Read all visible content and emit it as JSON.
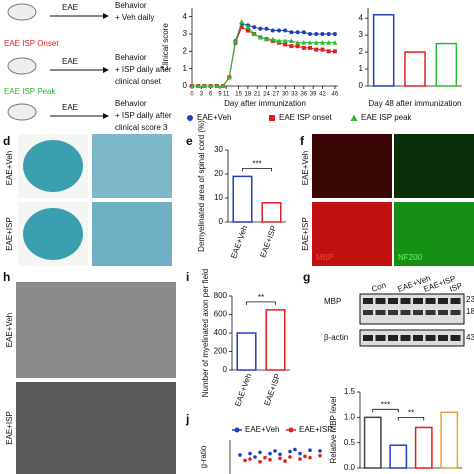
{
  "panel_labels": {
    "d": "d",
    "e": "e",
    "f": "f",
    "h": "h",
    "i": "i",
    "g": "g",
    "j": "j"
  },
  "schematic": {
    "row1": {
      "eae": "EAE",
      "line1": "Behavior",
      "line2": "+ Veh daily"
    },
    "row2": {
      "group": "EAE ISP Onset",
      "eae": "EAE",
      "line1": "Behavior",
      "line2": "+ ISP daily after",
      "line3": "clinical onset"
    },
    "row3": {
      "group": "EAE ISP Peak",
      "eae": "EAE",
      "line1": "Behavior",
      "line2": "+ ISP daily after",
      "line3": "clinical score 3"
    }
  },
  "images": {
    "d": {
      "veh": "EAE+Veh",
      "isp": "EAE+ISP"
    },
    "f": {
      "veh": "EAE+Veh",
      "isp": "EAE+ISP",
      "mbp": "MBP",
      "nf200": "NF200"
    },
    "h": {
      "veh": "EAE+Veh",
      "isp": "EAE+ISP"
    },
    "blot": {
      "lanes": [
        "Con",
        "EAE+Veh",
        "EAE+ISP",
        "ISP"
      ],
      "rows": [
        "MBP",
        "β-actin"
      ],
      "markers": [
        "23",
        "18",
        "43"
      ]
    }
  },
  "chart_data": [
    {
      "type": "line",
      "ylabel": "Clinical score",
      "xlabel": "Day after immunization",
      "x": [
        0,
        2,
        4,
        6,
        8,
        10,
        12,
        14,
        16,
        18,
        20,
        22,
        24,
        26,
        28,
        30,
        32,
        34,
        36,
        38,
        40,
        42,
        44,
        46
      ],
      "xlim": [
        0,
        47
      ],
      "ylim": [
        0,
        4.5
      ],
      "yticks": [
        0,
        1,
        2,
        3,
        4
      ],
      "xticks": [
        0,
        3,
        6,
        9,
        11,
        15,
        18,
        21,
        24,
        27,
        30,
        33,
        36,
        39,
        42,
        46
      ],
      "series": [
        {
          "name": "EAE+Veh",
          "color": "#1f3fbf",
          "marker": "circle",
          "values": [
            0,
            0,
            0,
            0,
            0,
            0,
            0.5,
            2.6,
            3.6,
            3.5,
            3.4,
            3.3,
            3.3,
            3.2,
            3.2,
            3.2,
            3.1,
            3.1,
            3.1,
            3.0,
            3.0,
            3.0,
            3.0,
            3.0
          ]
        },
        {
          "name": "EAE ISP onset",
          "color": "#e02020",
          "marker": "square",
          "values": [
            0,
            0,
            0,
            0,
            0,
            0,
            0.5,
            2.5,
            3.4,
            3.2,
            3.0,
            2.8,
            2.7,
            2.6,
            2.5,
            2.4,
            2.3,
            2.3,
            2.2,
            2.2,
            2.1,
            2.1,
            2.0,
            2.0
          ]
        },
        {
          "name": "EAE ISP peak",
          "color": "#2db82d",
          "marker": "triangle",
          "values": [
            0,
            0,
            0,
            0,
            0,
            0,
            0.5,
            2.6,
            3.7,
            3.4,
            3.0,
            2.8,
            2.7,
            2.7,
            2.6,
            2.6,
            2.6,
            2.5,
            2.5,
            2.5,
            2.5,
            2.5,
            2.5,
            2.5
          ]
        }
      ]
    },
    {
      "type": "bar",
      "xlabel": "Day 48 after immunization",
      "categories": [
        null,
        null,
        null
      ],
      "values": [
        4.2,
        2.0,
        2.5
      ],
      "colors": [
        "#1f3fbf",
        "#e02020",
        "#2db82d"
      ],
      "ylim": [
        0,
        4.6
      ],
      "yticks": [
        0,
        1,
        2,
        3,
        4
      ],
      "annotations": []
    },
    {
      "type": "bar",
      "ylabel": "Demyelinated area of spinal cord (%)",
      "categories": [
        "EAE+Veh",
        "EAE+ISP"
      ],
      "values": [
        19,
        8
      ],
      "colors": [
        "#1f3fbf",
        "#e02020"
      ],
      "ylim": [
        0,
        30
      ],
      "yticks": [
        0,
        10,
        20,
        30
      ],
      "annotations": [
        "***"
      ]
    },
    {
      "type": "bar",
      "ylabel": "Number of myelinated axon per field",
      "categories": [
        "EAE+Veh",
        "EAE+ISP"
      ],
      "values": [
        400,
        650
      ],
      "colors": [
        "#1f3fbf",
        "#e02020"
      ],
      "ylim": [
        0,
        800
      ],
      "yticks": [
        0,
        200,
        400,
        600,
        800
      ],
      "annotations": [
        "**"
      ]
    },
    {
      "type": "bar",
      "ylabel": "Relative MBP level",
      "categories": [
        null,
        null,
        null,
        null
      ],
      "values": [
        1.0,
        0.45,
        0.8,
        1.1
      ],
      "colors": [
        "#444444",
        "#1f3fbf",
        "#e02020",
        "#e8a040"
      ],
      "ylim": [
        0,
        1.5
      ],
      "yticks": [
        {
          "value": 0,
          "label": "0.0"
        },
        {
          "value": 0.5,
          "label": "0.5"
        },
        {
          "value": 1,
          "label": "1.0"
        },
        {
          "value": 1.5,
          "label": "1.5"
        }
      ],
      "annotations": [
        "***",
        "**"
      ]
    },
    {
      "type": "scatter",
      "ylabel": "g-ratio",
      "xlim": [
        0,
        10
      ],
      "ylim": [
        0.5,
        1.0
      ],
      "series": [
        {
          "name": "EAE+Veh",
          "color": "#1f3fbf",
          "x": [
            1,
            2,
            2.5,
            3,
            4,
            4.5,
            5,
            6,
            6.5,
            7,
            8,
            9
          ],
          "values": [
            0.78,
            0.8,
            0.75,
            0.82,
            0.8,
            0.84,
            0.79,
            0.83,
            0.86,
            0.8,
            0.85,
            0.84
          ]
        },
        {
          "name": "EAE+ISP",
          "color": "#e02020",
          "x": [
            1.5,
            2,
            3,
            3.5,
            4,
            5,
            5.5,
            6,
            7,
            7.5,
            8,
            9
          ],
          "values": [
            0.7,
            0.72,
            0.68,
            0.74,
            0.71,
            0.73,
            0.69,
            0.75,
            0.72,
            0.76,
            0.74,
            0.77
          ]
        }
      ]
    }
  ]
}
